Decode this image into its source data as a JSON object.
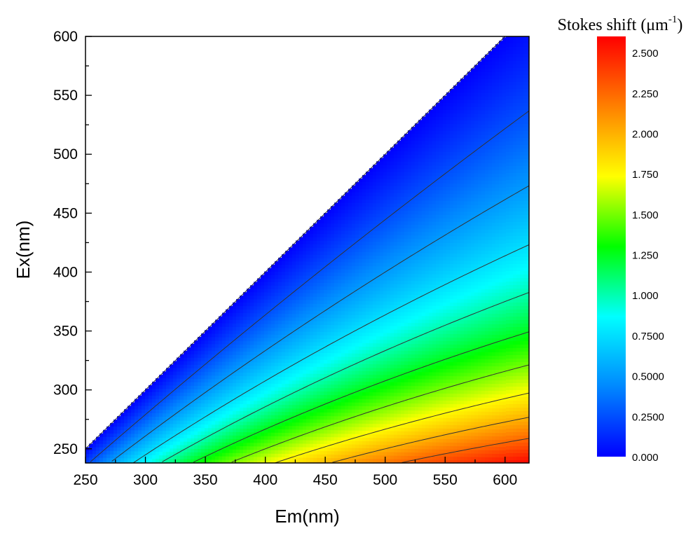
{
  "chart_data": {
    "type": "heatmap",
    "xlabel": "Em(nm)",
    "ylabel": "Ex(nm)",
    "xlim": [
      250,
      620
    ],
    "ylim": [
      238,
      600
    ],
    "xticks": [
      250,
      300,
      350,
      400,
      450,
      500,
      550,
      600
    ],
    "yticks": [
      250,
      300,
      350,
      400,
      450,
      500,
      550,
      600
    ],
    "colorbar": {
      "title_main": "Stokes shift (μm",
      "title_sup": "-1",
      "title_close": ")",
      "ticks": [
        "0.000",
        "0.2500",
        "0.5000",
        "0.7500",
        "1.000",
        "1.250",
        "1.500",
        "1.750",
        "2.000",
        "2.250",
        "2.500"
      ],
      "tick_values": [
        0,
        0.25,
        0.5,
        0.75,
        1.0,
        1.25,
        1.5,
        1.75,
        2.0,
        2.25,
        2.5
      ],
      "range": [
        0,
        2.6
      ]
    },
    "z_function": "1000/Ex - 1000/Em (valid where Em >= Ex)",
    "contour_levels": [
      0.25,
      0.5,
      0.75,
      1.0,
      1.25,
      1.5,
      1.75,
      2.0,
      2.25
    ],
    "colormap": [
      "#0000ff",
      "#0088ff",
      "#00ffff",
      "#00ff00",
      "#ffff00",
      "#ff8000",
      "#ff0000"
    ],
    "grid": false,
    "legend": "colorbar-right"
  }
}
